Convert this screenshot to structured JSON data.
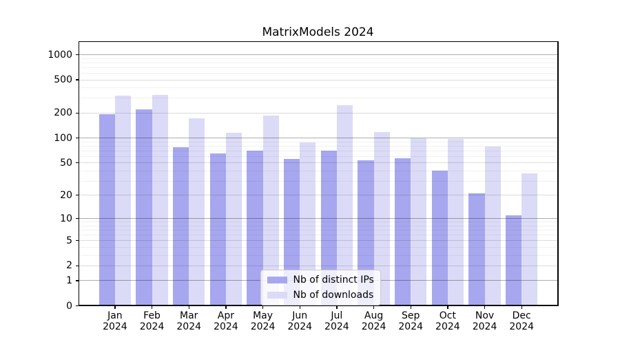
{
  "title": "MatrixModels 2024",
  "colors": {
    "distinct_ips": "#a7a7ef",
    "downloads": "#dbdbf7",
    "axis": "#000000",
    "legend_border": "#cccccc"
  },
  "legend": {
    "position": "lower center",
    "items": [
      {
        "label": "Nb of distinct IPs",
        "color_key": "distinct_ips"
      },
      {
        "label": "Nb of downloads",
        "color_key": "downloads"
      }
    ]
  },
  "chart_data": {
    "type": "bar",
    "title": "MatrixModels 2024",
    "categories": [
      "Jan 2024",
      "Feb 2024",
      "Mar 2024",
      "Apr 2024",
      "May 2024",
      "Jun 2024",
      "Jul 2024",
      "Aug 2024",
      "Sep 2024",
      "Oct 2024",
      "Nov 2024",
      "Dec 2024"
    ],
    "x_tick_months": [
      "Jan",
      "Feb",
      "Mar",
      "Apr",
      "May",
      "Jun",
      "Jul",
      "Aug",
      "Sep",
      "Oct",
      "Nov",
      "Dec"
    ],
    "x_tick_year": "2024",
    "series": [
      {
        "name": "Nb of distinct IPs",
        "values": [
          193,
          220,
          77,
          65,
          70,
          56,
          70,
          54,
          57,
          40,
          21,
          11
        ]
      },
      {
        "name": "Nb of downloads",
        "values": [
          322,
          333,
          174,
          116,
          186,
          89,
          250,
          117,
          100,
          98,
          79,
          37
        ]
      }
    ],
    "xlabel": "",
    "ylabel": "",
    "y_axis": {
      "scale": "log1p",
      "ticks": [
        0,
        1,
        2,
        5,
        10,
        20,
        50,
        100,
        200,
        500,
        1000
      ],
      "minor_ticks": [
        3,
        4,
        6,
        7,
        8,
        9,
        30,
        40,
        60,
        70,
        80,
        90,
        300,
        400,
        600,
        700,
        800,
        900
      ],
      "max_value_line": 1000
    },
    "grid": "on",
    "legend_position": "lower center"
  }
}
